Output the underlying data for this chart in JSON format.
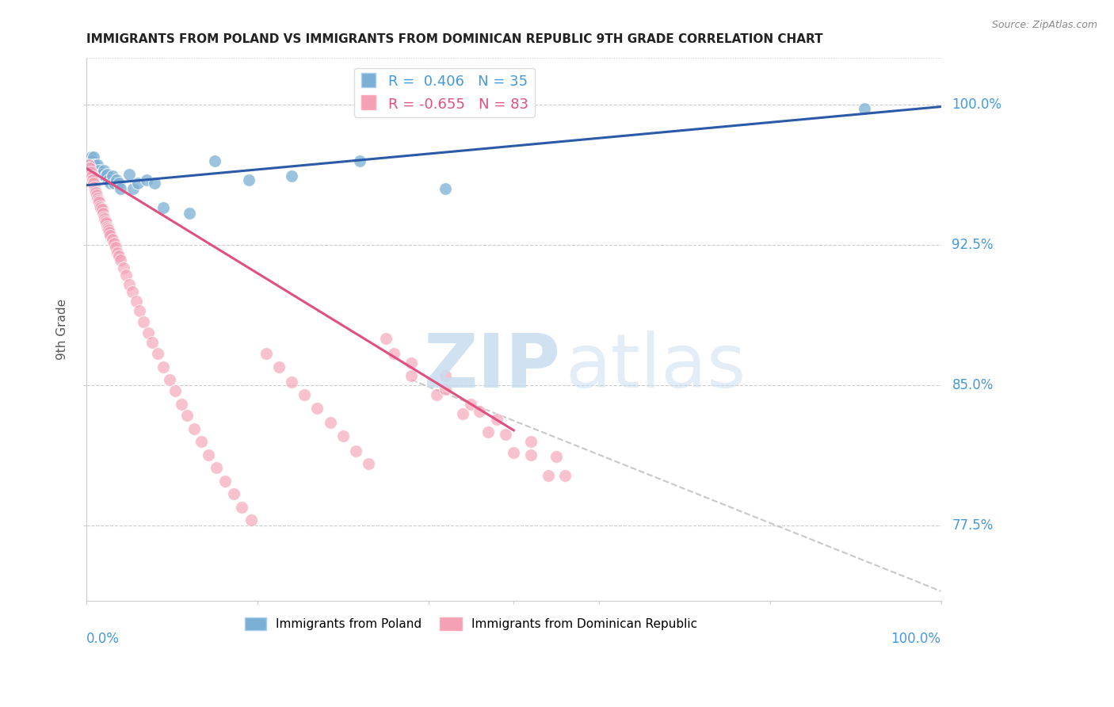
{
  "title": "IMMIGRANTS FROM POLAND VS IMMIGRANTS FROM DOMINICAN REPUBLIC 9TH GRADE CORRELATION CHART",
  "source": "Source: ZipAtlas.com",
  "ylabel": "9th Grade",
  "ytick_labels": [
    "100.0%",
    "92.5%",
    "85.0%",
    "77.5%"
  ],
  "ytick_values": [
    1.0,
    0.925,
    0.85,
    0.775
  ],
  "ylim": [
    0.735,
    1.025
  ],
  "xlim": [
    0.0,
    1.0
  ],
  "blue_color": "#7BAFD4",
  "pink_color": "#F4A0B5",
  "blue_line_color": "#2B5BA8",
  "pink_line_color": "#E05080",
  "dashed_line_color": "#C8C8C8",
  "poland_scatter_x": [
    0.003,
    0.005,
    0.006,
    0.007,
    0.008,
    0.009,
    0.01,
    0.012,
    0.013,
    0.015,
    0.016,
    0.018,
    0.02,
    0.022,
    0.024,
    0.026,
    0.028,
    0.03,
    0.032,
    0.035,
    0.038,
    0.04,
    0.05,
    0.055,
    0.06,
    0.07,
    0.08,
    0.09,
    0.12,
    0.15,
    0.19,
    0.24,
    0.32,
    0.42,
    0.91
  ],
  "poland_scatter_y": [
    0.968,
    0.972,
    0.97,
    0.968,
    0.972,
    0.968,
    0.968,
    0.965,
    0.968,
    0.965,
    0.963,
    0.963,
    0.965,
    0.962,
    0.963,
    0.96,
    0.958,
    0.962,
    0.958,
    0.96,
    0.958,
    0.955,
    0.963,
    0.955,
    0.958,
    0.96,
    0.958,
    0.945,
    0.942,
    0.97,
    0.96,
    0.962,
    0.97,
    0.955,
    0.998
  ],
  "dominican_scatter_x": [
    0.003,
    0.004,
    0.005,
    0.006,
    0.007,
    0.008,
    0.009,
    0.01,
    0.011,
    0.012,
    0.013,
    0.014,
    0.015,
    0.016,
    0.017,
    0.018,
    0.019,
    0.02,
    0.021,
    0.022,
    0.023,
    0.024,
    0.025,
    0.026,
    0.027,
    0.028,
    0.03,
    0.032,
    0.034,
    0.036,
    0.038,
    0.04,
    0.043,
    0.046,
    0.05,
    0.054,
    0.058,
    0.062,
    0.067,
    0.072,
    0.077,
    0.083,
    0.09,
    0.097,
    0.104,
    0.111,
    0.118,
    0.126,
    0.134,
    0.143,
    0.152,
    0.162,
    0.172,
    0.182,
    0.193,
    0.21,
    0.225,
    0.24,
    0.255,
    0.27,
    0.285,
    0.3,
    0.315,
    0.33,
    0.36,
    0.38,
    0.41,
    0.44,
    0.47,
    0.5,
    0.54,
    0.42,
    0.48,
    0.52,
    0.55,
    0.45,
    0.35,
    0.38,
    0.42,
    0.46,
    0.49,
    0.52,
    0.56
  ],
  "dominican_scatter_y": [
    0.968,
    0.966,
    0.964,
    0.962,
    0.96,
    0.958,
    0.956,
    0.954,
    0.953,
    0.952,
    0.95,
    0.949,
    0.948,
    0.946,
    0.945,
    0.944,
    0.942,
    0.94,
    0.939,
    0.938,
    0.937,
    0.935,
    0.934,
    0.933,
    0.932,
    0.93,
    0.928,
    0.926,
    0.924,
    0.921,
    0.919,
    0.917,
    0.913,
    0.909,
    0.904,
    0.9,
    0.895,
    0.89,
    0.884,
    0.878,
    0.873,
    0.867,
    0.86,
    0.853,
    0.847,
    0.84,
    0.834,
    0.827,
    0.82,
    0.813,
    0.806,
    0.799,
    0.792,
    0.785,
    0.778,
    0.867,
    0.86,
    0.852,
    0.845,
    0.838,
    0.83,
    0.823,
    0.815,
    0.808,
    0.867,
    0.855,
    0.845,
    0.835,
    0.825,
    0.814,
    0.802,
    0.855,
    0.832,
    0.82,
    0.812,
    0.84,
    0.875,
    0.862,
    0.848,
    0.836,
    0.824,
    0.813,
    0.802
  ],
  "blue_trend_x": [
    0.0,
    1.0
  ],
  "blue_trend_y_start": 0.957,
  "blue_trend_y_end": 0.999,
  "pink_trend_x": [
    0.0,
    0.5
  ],
  "pink_trend_y_start": 0.966,
  "pink_trend_y_end": 0.826,
  "dashed_trend_x": [
    0.38,
    1.0
  ],
  "dashed_trend_y_start": 0.853,
  "dashed_trend_y_end": 0.74
}
